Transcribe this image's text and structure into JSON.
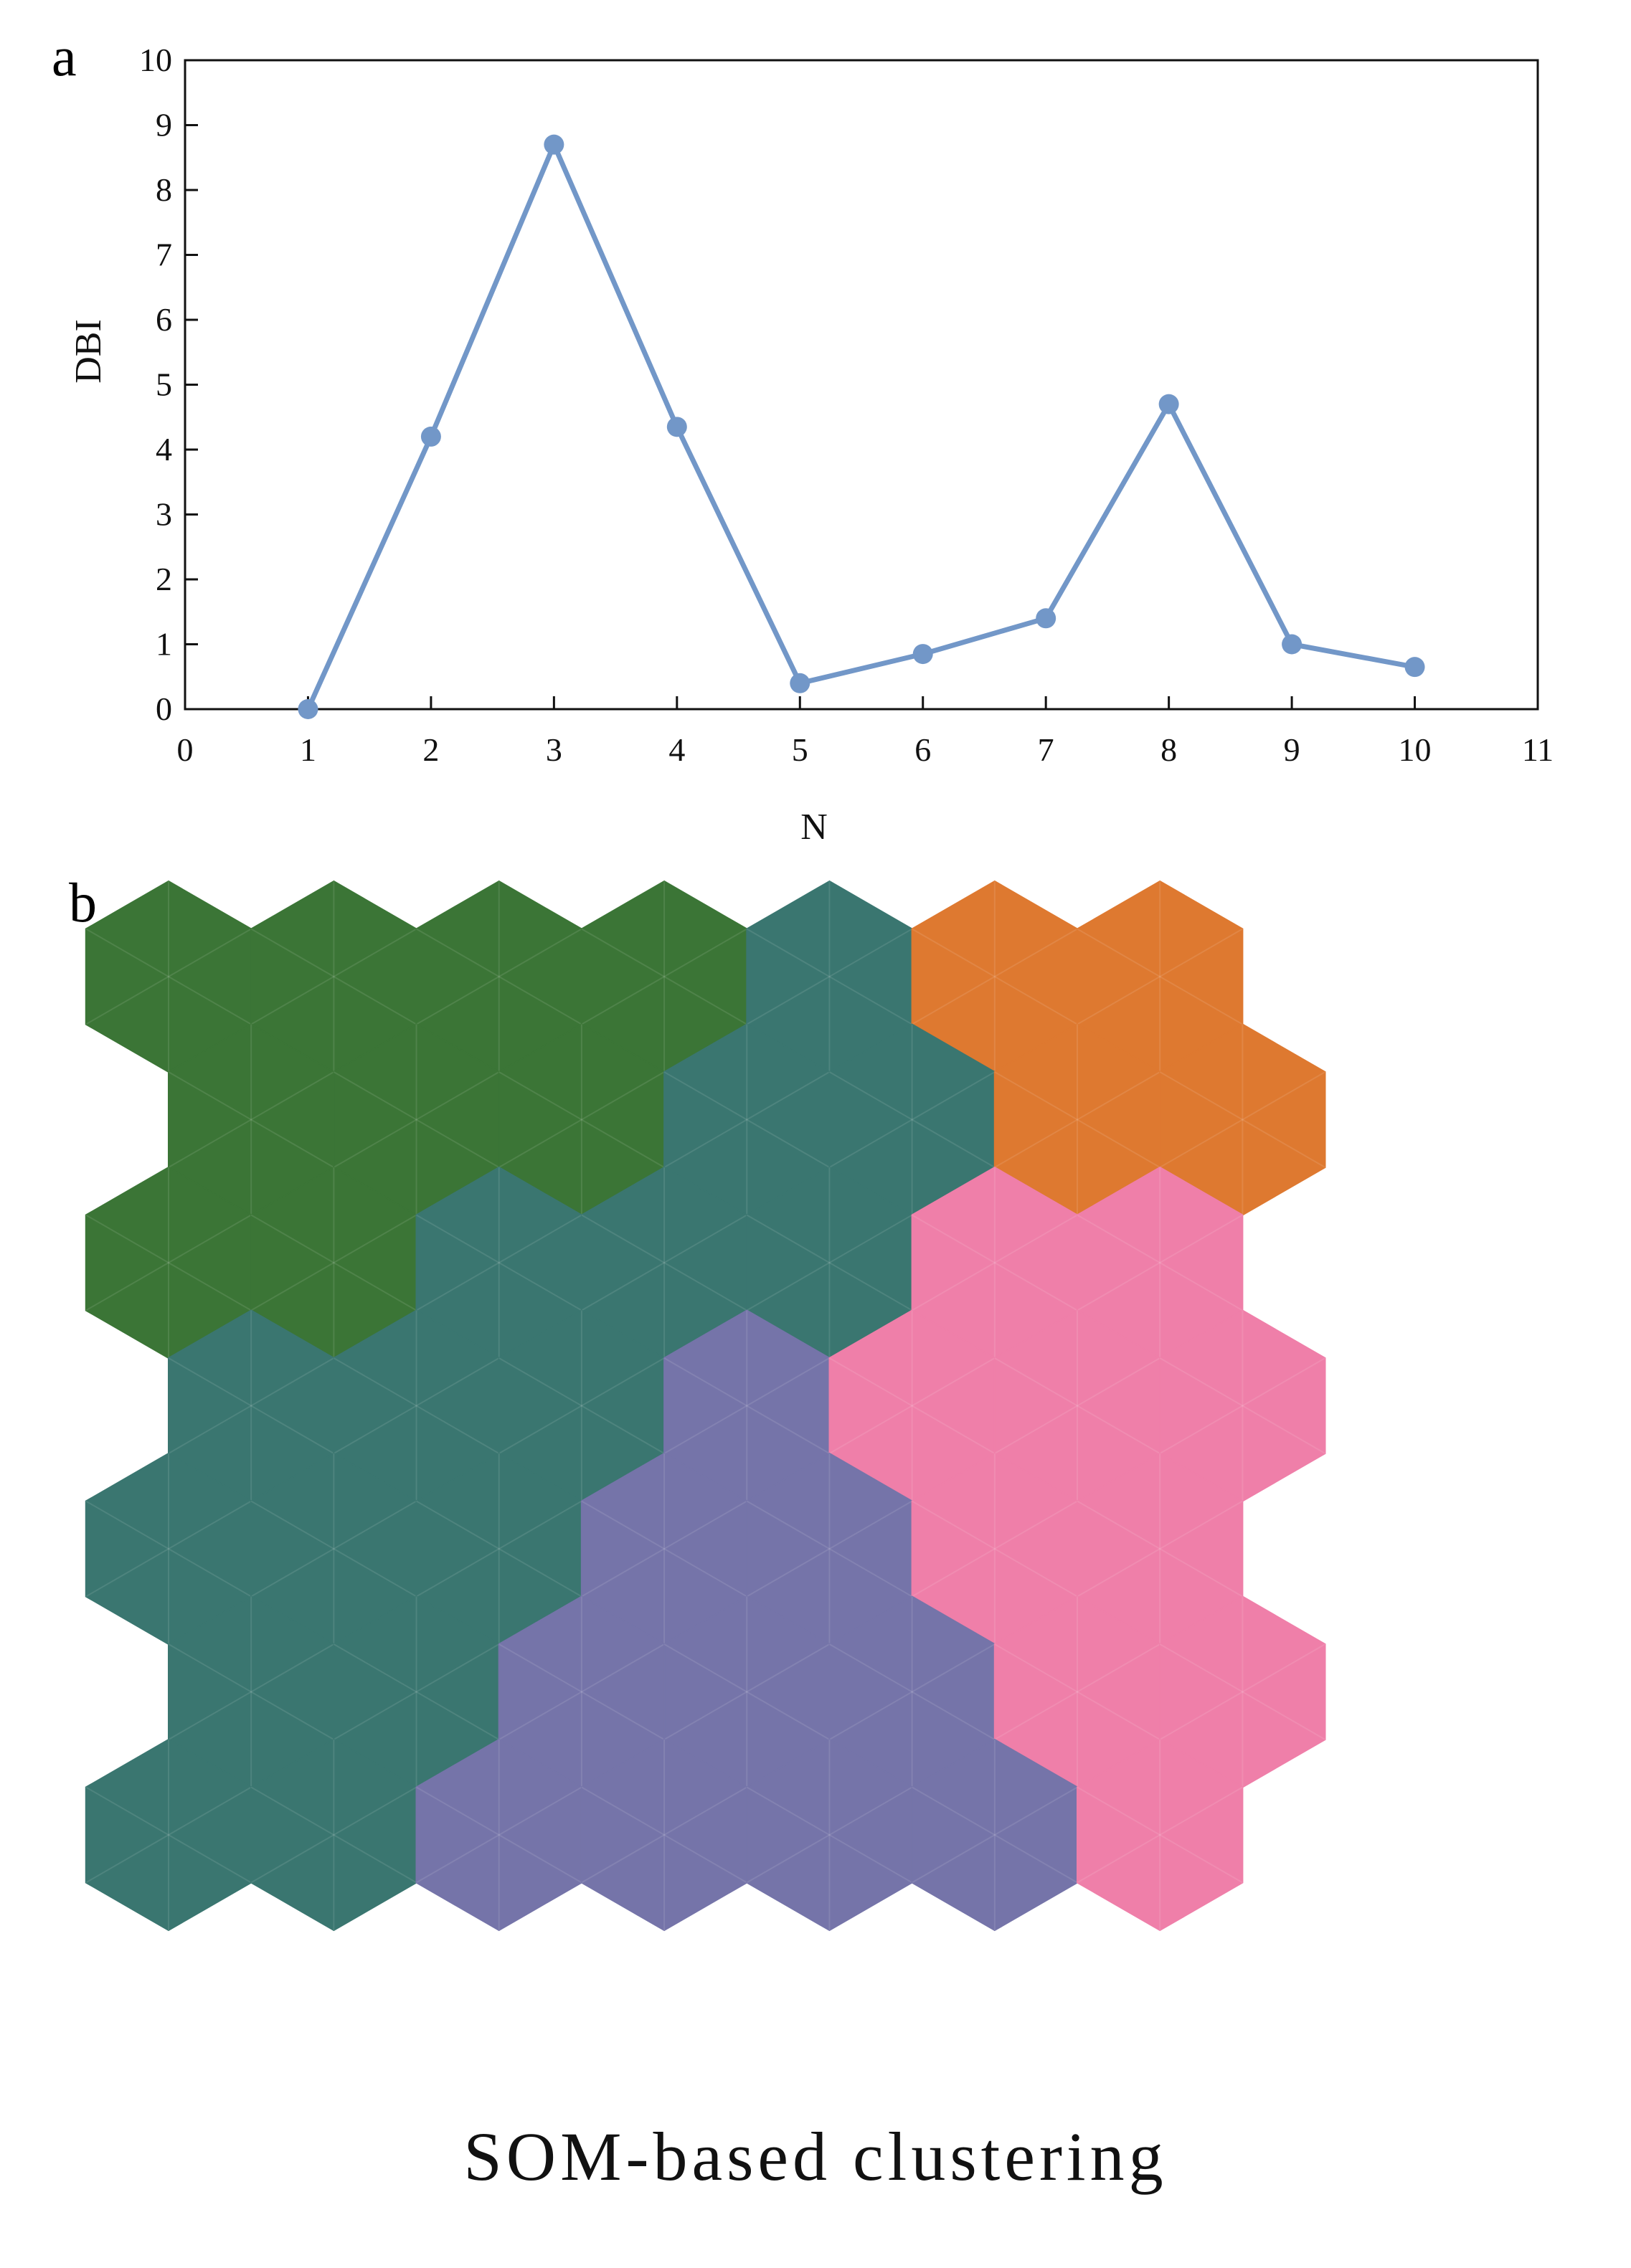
{
  "panels": {
    "a": "a",
    "b": "b"
  },
  "chart_data": [
    {
      "type": "line",
      "xlabel": "N",
      "ylabel": "DBI",
      "xlim": [
        0,
        11
      ],
      "ylim": [
        0,
        10
      ],
      "xticks": [
        0,
        1,
        2,
        3,
        4,
        5,
        6,
        7,
        8,
        9,
        10,
        11
      ],
      "yticks": [
        0,
        1,
        2,
        3,
        4,
        5,
        6,
        7,
        8,
        9,
        10
      ],
      "x": [
        1,
        2,
        3,
        4,
        5,
        6,
        7,
        8,
        9,
        10
      ],
      "y": [
        0.0,
        4.2,
        8.7,
        4.35,
        0.4,
        0.85,
        1.4,
        4.7,
        1.0,
        0.65
      ],
      "grid": false,
      "line_color": "#7297c8",
      "marker": "circle"
    },
    {
      "type": "heatmap",
      "title": "SOM-based clustering",
      "grid_shape": "hexagonal",
      "cluster_colors": {
        "G": "#3b7536",
        "T": "#3a7670",
        "O": "#de7930",
        "P": "#ef7fa9",
        "V": "#7574a9"
      },
      "rows": [
        [
          "G",
          "G",
          "G",
          "G",
          "T",
          "O",
          "O"
        ],
        [
          "G",
          "G",
          "G",
          "T",
          "T",
          "O",
          "O"
        ],
        [
          "G",
          "G",
          "T",
          "T",
          "T",
          "P",
          "P"
        ],
        [
          "T",
          "T",
          "T",
          "V",
          "P",
          "P",
          "P"
        ],
        [
          "T",
          "T",
          "T",
          "V",
          "V",
          "P",
          "P"
        ],
        [
          "T",
          "T",
          "V",
          "V",
          "V",
          "P",
          "P"
        ],
        [
          "T",
          "T",
          "V",
          "V",
          "V",
          "V",
          "P"
        ]
      ]
    }
  ]
}
